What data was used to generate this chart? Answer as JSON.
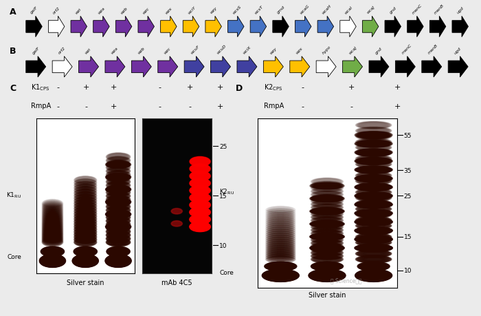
{
  "row_A": [
    {
      "name": "galF",
      "color": "#000000",
      "outline": false
    },
    {
      "name": "orf2",
      "color": "#ffffff",
      "outline": true
    },
    {
      "name": "wzi",
      "color": "#7030a0",
      "outline": false
    },
    {
      "name": "wza",
      "color": "#7030a0",
      "outline": false
    },
    {
      "name": "wzb",
      "color": "#7030a0",
      "outline": false
    },
    {
      "name": "wzc",
      "color": "#7030a0",
      "outline": false
    },
    {
      "name": "wzx",
      "color": "#ffc000",
      "outline": false
    },
    {
      "name": "wciY",
      "color": "#ffc000",
      "outline": false
    },
    {
      "name": "wzy",
      "color": "#ffc000",
      "outline": false
    },
    {
      "name": "wcsS",
      "color": "#4472c4",
      "outline": false
    },
    {
      "name": "wcsT",
      "color": "#4472c4",
      "outline": false
    },
    {
      "name": "gmd",
      "color": "#000000",
      "outline": false
    },
    {
      "name": "wcaG",
      "color": "#4472c4",
      "outline": false
    },
    {
      "name": "wcaH",
      "color": "#4472c4",
      "outline": false
    },
    {
      "name": "wcaI",
      "color": "#ffffff",
      "outline": true
    },
    {
      "name": "wcaJ",
      "color": "#70ad47",
      "outline": false
    },
    {
      "name": "gnd",
      "color": "#000000",
      "outline": false
    },
    {
      "name": "manC",
      "color": "#000000",
      "outline": false
    },
    {
      "name": "manB",
      "color": "#000000",
      "outline": false
    },
    {
      "name": "ugd",
      "color": "#000000",
      "outline": false
    }
  ],
  "row_B": [
    {
      "name": "galF",
      "color": "#000000",
      "outline": false
    },
    {
      "name": "orf2",
      "color": "#ffffff",
      "outline": true
    },
    {
      "name": "wzi",
      "color": "#7030a0",
      "outline": false
    },
    {
      "name": "wza",
      "color": "#7030a0",
      "outline": false
    },
    {
      "name": "wzb",
      "color": "#7030a0",
      "outline": false
    },
    {
      "name": "wzc",
      "color": "#7030a0",
      "outline": false
    },
    {
      "name": "wcuF",
      "color": "#4040a0",
      "outline": false
    },
    {
      "name": "wcuD",
      "color": "#4040a0",
      "outline": false
    },
    {
      "name": "wciX",
      "color": "#4040a0",
      "outline": false
    },
    {
      "name": "wzy",
      "color": "#ffc000",
      "outline": false
    },
    {
      "name": "wzx",
      "color": "#ffc000",
      "outline": false
    },
    {
      "name": "hypo",
      "color": "#ffffff",
      "outline": true
    },
    {
      "name": "wcaJ",
      "color": "#70ad47",
      "outline": false
    },
    {
      "name": "gnd",
      "color": "#000000",
      "outline": false
    },
    {
      "name": "manC",
      "color": "#000000",
      "outline": false
    },
    {
      "name": "manB",
      "color": "#000000",
      "outline": false
    },
    {
      "name": "ugd",
      "color": "#000000",
      "outline": false
    }
  ],
  "bg_color": "#ebebeb"
}
